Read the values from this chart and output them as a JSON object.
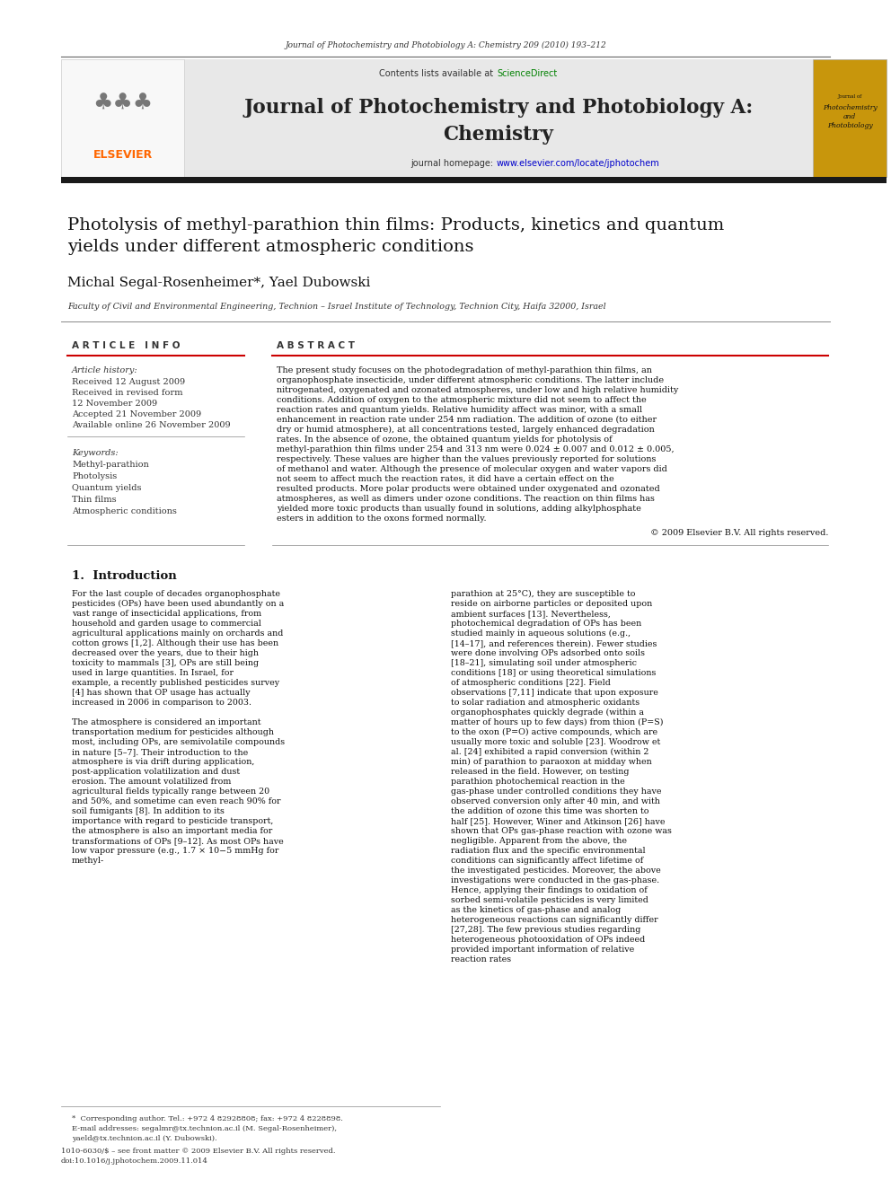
{
  "page_width": 9.92,
  "page_height": 13.23,
  "bg_color": "#ffffff",
  "header_cite": "Journal of Photochemistry and Photobiology A: Chemistry 209 (2010) 193–212",
  "journal_title_line1": "Journal of Photochemistry and Photobiology A:",
  "journal_title_line2": "Chemistry",
  "contents_text": "Contents lists available at ",
  "sciencedirect_text": "ScienceDirect",
  "homepage_text": "journal homepage: ",
  "homepage_url": "www.elsevier.com/locate/jphotochem",
  "header_bg": "#e8e8e8",
  "article_title": "Photolysis of methyl-parathion thin films: Products, kinetics and quantum\nyields under different atmospheric conditions",
  "authors": "Michal Segal-Rosenheimer*, Yael Dubowski",
  "affiliation": "Faculty of Civil and Environmental Engineering, Technion – Israel Institute of Technology, Technion City, Haifa 32000, Israel",
  "article_info_title": "A R T I C L E   I N F O",
  "abstract_title": "A B S T R A C T",
  "article_history_label": "Article history:",
  "received1": "Received 12 August 2009",
  "received2": "Received in revised form",
  "received2b": "12 November 2009",
  "accepted": "Accepted 21 November 2009",
  "available": "Available online 26 November 2009",
  "keywords_label": "Keywords:",
  "keyword1": "Methyl-parathion",
  "keyword2": "Photolysis",
  "keyword3": "Quantum yields",
  "keyword4": "Thin films",
  "keyword5": "Atmospheric conditions",
  "abstract_text": "The present study focuses on the photodegradation of methyl-parathion thin films, an organophosphate insecticide, under different atmospheric conditions. The latter include nitrogenated, oxygenated and ozonated atmospheres, under low and high relative humidity conditions. Addition of oxygen to the atmospheric mixture did not seem to affect the reaction rates and quantum yields. Relative humidity affect was minor, with a small enhancement in reaction rate under 254 nm radiation. The addition of ozone (to either dry or humid atmosphere), at all concentrations tested, largely enhanced degradation rates. In the absence of ozone, the obtained quantum yields for photolysis of methyl-parathion thin films under 254 and 313 nm were 0.024 ± 0.007 and 0.012 ± 0.005, respectively. These values are higher than the values previously reported for solutions of methanol and water. Although the presence of molecular oxygen and water vapors did not seem to affect much the reaction rates, it did have a certain effect on the resulted products. More polar products were obtained under oxygenated and ozonated atmospheres, as well as dimers under ozone conditions. The reaction on thin films has yielded more toxic products than usually found in solutions, adding alkylphosphate esters in addition to the oxons formed normally.",
  "copyright": "© 2009 Elsevier B.V. All rights reserved.",
  "intro_heading": "1.  Introduction",
  "intro_col1": "For the last couple of decades organophosphate pesticides (OPs) have been used abundantly on a vast range of insecticidal applications, from household and garden usage to commercial agricultural applications mainly on orchards and cotton grows [1,2]. Although their use has been decreased over the years, due to their high toxicity to mammals [3], OPs are still being used in large quantities. In Israel, for example, a recently published pesticides survey [4] has shown that OP usage has actually increased in 2006 in comparison to 2003.\n\n    The atmosphere is considered an important transportation medium for pesticides although most, including OPs, are semivolatile compounds in nature [5–7]. Their introduction to the atmosphere is via drift during application, post-application volatilization and dust erosion. The amount volatilized from agricultural fields typically range between 20 and 50%, and sometime can even reach 90% for soil fumigants [8]. In addition to its importance with regard to pesticide transport, the atmosphere is also an important media for transformations of OPs [9–12]. As most OPs have low vapor pressure (e.g., 1.7 × 10−5 mmHg for methyl-",
  "intro_col2": "parathion at 25°C), they are susceptible to reside on airborne particles or deposited upon ambient surfaces [13]. Nevertheless, photochemical degradation of OPs has been studied mainly in aqueous solutions (e.g., [14–17], and references therein). Fewer studies were done involving OPs adsorbed onto soils [18–21], simulating soil under atmospheric conditions [18] or using theoretical simulations of atmospheric conditions [22]. Field observations [7,11] indicate that upon exposure to solar radiation and atmospheric oxidants organophosphates quickly degrade (within a matter of hours up to few days) from thion (P=S) to the oxon (P=O) active compounds, which are usually more toxic and soluble [23]. Woodrow et al. [24] exhibited a rapid conversion (within 2 min) of parathion to paraoxon at midday when released in the field. However, on testing parathion photochemical reaction in the gas-phase under controlled conditions they have observed conversion only after 40 min, and with the addition of ozone this time was shorten to half [25]. However, Winer and Atkinson [26] have shown that OPs gas-phase reaction with ozone was negligible. Apparent from the above, the radiation flux and the specific environmental conditions can significantly affect lifetime of the investigated pesticides. Moreover, the above investigations were conducted in the gas-phase. Hence, applying their findings to oxidation of sorbed semi-volatile pesticides is very limited as the kinetics of gas-phase and analog heterogeneous reactions can significantly differ [27,28]. The few previous studies regarding heterogeneous photooxidation of OPs indeed provided important information of relative reaction rates",
  "footer_text1": "*  Corresponding author. Tel.: +972 4 82928808; fax: +972 4 8228898.",
  "footer_text2": "E-mail addresses: segalmr@tx.technion.ac.il (M. Segal-Rosenheimer),",
  "footer_text3": "yaeld@tx.technion.ac.il (Y. Dubowski).",
  "footer_issn": "1010-6030/$ – see front matter © 2009 Elsevier B.V. All rights reserved.",
  "footer_doi": "doi:10.1016/j.jphotochem.2009.11.014",
  "black_bar_color": "#1a1a1a",
  "elsevier_color": "#FF6600",
  "sciencedirect_color": "#008000",
  "url_color": "#0000CC",
  "link_color": "#0000CC"
}
